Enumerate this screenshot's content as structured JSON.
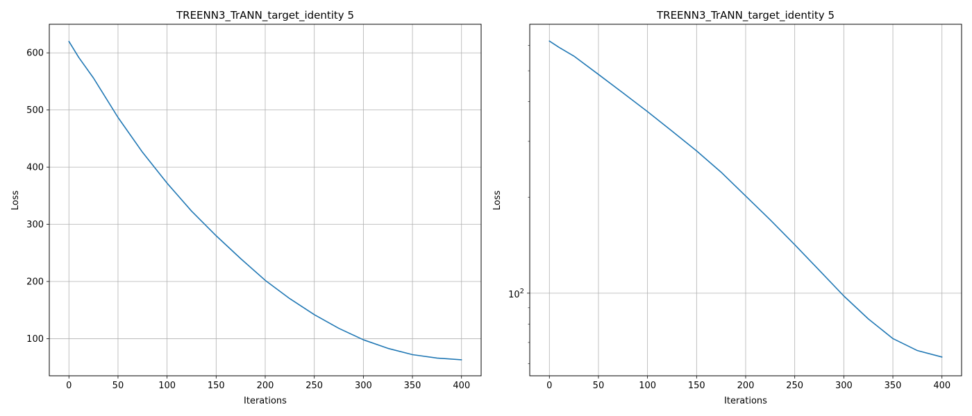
{
  "chart_data": [
    {
      "type": "line",
      "title": "TREENN3_TrANN_target_identity 5",
      "xlabel": "Iterations",
      "ylabel": "Loss",
      "yscale": "linear",
      "grid": true,
      "xlim": [
        -20,
        420
      ],
      "ylim": [
        35,
        650
      ],
      "x_ticks": [
        0,
        50,
        100,
        150,
        200,
        250,
        300,
        350,
        400
      ],
      "x_tick_labels": [
        "0",
        "50",
        "100",
        "150",
        "200",
        "250",
        "300",
        "350",
        "400"
      ],
      "y_ticks": [
        100,
        200,
        300,
        400,
        500,
        600
      ],
      "y_tick_labels": [
        "100",
        "200",
        "300",
        "400",
        "500",
        "600"
      ],
      "series": [
        {
          "color": "#1f77b4",
          "x": [
            0,
            10,
            25,
            50,
            75,
            100,
            125,
            150,
            175,
            200,
            225,
            250,
            275,
            300,
            325,
            350,
            375,
            400
          ],
          "values": [
            620,
            592,
            556,
            487,
            426,
            372,
            323,
            280,
            240,
            202,
            170,
            142,
            118,
            98,
            83,
            72,
            66,
            63
          ]
        }
      ]
    },
    {
      "type": "line",
      "title": "TREENN3_TrANN_target_identity 5",
      "xlabel": "Iterations",
      "ylabel": "Loss",
      "yscale": "log",
      "grid": true,
      "xlim": [
        -20,
        420
      ],
      "ylim": [
        55,
        700
      ],
      "x_ticks": [
        0,
        50,
        100,
        150,
        200,
        250,
        300,
        350,
        400
      ],
      "x_tick_labels": [
        "0",
        "50",
        "100",
        "150",
        "200",
        "250",
        "300",
        "350",
        "400"
      ],
      "y_major_ticks": [
        100
      ],
      "y_major_tick_labels": [
        {
          "base": "10",
          "exp": "2"
        }
      ],
      "y_minor_ticks": [
        60,
        70,
        80,
        90,
        200,
        300,
        400,
        500,
        600
      ],
      "series": [
        {
          "color": "#1f77b4",
          "x": [
            0,
            10,
            25,
            50,
            75,
            100,
            125,
            150,
            175,
            200,
            225,
            250,
            275,
            300,
            325,
            350,
            375,
            400
          ],
          "values": [
            620,
            592,
            556,
            487,
            426,
            372,
            323,
            280,
            240,
            202,
            170,
            142,
            118,
            98,
            83,
            72,
            66,
            63
          ]
        }
      ]
    }
  ]
}
